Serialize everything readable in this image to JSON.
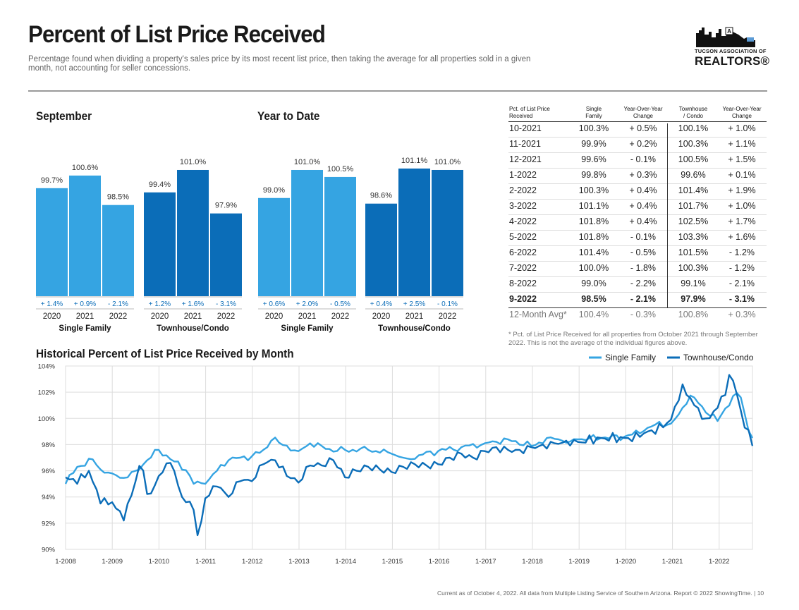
{
  "header": {
    "title": "Percent of List Price Received",
    "subtitle": "Percentage found when dividing a property's sales price by its most recent list price, then taking the average for all properties sold in a given month, not accounting for seller concessions.",
    "logo_line1": "TUCSON ASSOCIATION OF",
    "logo_line2": "REALTORS®"
  },
  "colors": {
    "single_family": "#35a4e2",
    "townhouse": "#0b6db8",
    "grid": "#dddddd",
    "text": "#1a1a1a",
    "change": "#0b6db8"
  },
  "bar_panels": {
    "september": {
      "title": "September",
      "groups": [
        {
          "label": "Single Family",
          "color": "single_family",
          "years": [
            "2020",
            "2021",
            "2022"
          ],
          "values": [
            99.7,
            100.6,
            98.5
          ],
          "value_labels": [
            "99.7%",
            "100.6%",
            "98.5%"
          ],
          "changes": [
            "+ 1.4%",
            "+ 0.9%",
            "- 2.1%"
          ]
        },
        {
          "label": "Townhouse/Condo",
          "color": "townhouse",
          "years": [
            "2020",
            "2021",
            "2022"
          ],
          "values": [
            99.4,
            101.0,
            97.9
          ],
          "value_labels": [
            "99.4%",
            "101.0%",
            "97.9%"
          ],
          "changes": [
            "+ 1.2%",
            "+ 1.6%",
            "- 3.1%"
          ]
        }
      ]
    },
    "ytd": {
      "title": "Year to Date",
      "groups": [
        {
          "label": "Single Family",
          "color": "single_family",
          "years": [
            "2020",
            "2021",
            "2022"
          ],
          "values": [
            99.0,
            101.0,
            100.5
          ],
          "value_labels": [
            "99.0%",
            "101.0%",
            "100.5%"
          ],
          "changes": [
            "+ 0.6%",
            "+ 2.0%",
            "- 0.5%"
          ]
        },
        {
          "label": "Townhouse/Condo",
          "color": "townhouse",
          "years": [
            "2020",
            "2021",
            "2022"
          ],
          "values": [
            98.6,
            101.1,
            101.0
          ],
          "value_labels": [
            "98.6%",
            "101.1%",
            "101.0%"
          ],
          "changes": [
            "+ 0.4%",
            "+ 2.5%",
            "- 0.1%"
          ]
        }
      ]
    }
  },
  "table": {
    "headers": [
      "Pct. of List Price\nReceived",
      "Single\nFamily",
      "Year-Over-Year\nChange",
      "Townhouse\n/ Condo",
      "Year-Over-Year\nChange"
    ],
    "rows": [
      [
        "10-2021",
        "100.3%",
        "+ 0.5%",
        "100.1%",
        "+ 1.0%"
      ],
      [
        "11-2021",
        "99.9%",
        "+ 0.2%",
        "100.3%",
        "+ 1.1%"
      ],
      [
        "12-2021",
        "99.6%",
        "- 0.1%",
        "100.5%",
        "+ 1.5%"
      ],
      [
        "1-2022",
        "99.8%",
        "+ 0.3%",
        "99.6%",
        "+ 0.1%"
      ],
      [
        "2-2022",
        "100.3%",
        "+ 0.4%",
        "101.4%",
        "+ 1.9%"
      ],
      [
        "3-2022",
        "101.1%",
        "+ 0.4%",
        "101.7%",
        "+ 1.0%"
      ],
      [
        "4-2022",
        "101.8%",
        "+ 0.4%",
        "102.5%",
        "+ 1.7%"
      ],
      [
        "5-2022",
        "101.8%",
        "- 0.1%",
        "103.3%",
        "+ 1.6%"
      ],
      [
        "6-2022",
        "101.4%",
        "- 0.5%",
        "101.5%",
        "- 1.2%"
      ],
      [
        "7-2022",
        "100.0%",
        "- 1.8%",
        "100.3%",
        "- 1.2%"
      ],
      [
        "8-2022",
        "99.0%",
        "- 2.2%",
        "99.1%",
        "- 2.1%"
      ],
      [
        "9-2022",
        "98.5%",
        "- 2.1%",
        "97.9%",
        "- 3.1%"
      ]
    ],
    "avg_row": [
      "12-Month Avg*",
      "100.4%",
      "- 0.3%",
      "100.8%",
      "+ 0.3%"
    ],
    "footnote": "* Pct. of List Price Received for all properties from October 2021 through September 2022. This is not the average of the individual figures above."
  },
  "chart_data": {
    "type": "line",
    "title": "Historical Percent of List Price Received by Month",
    "ylim": [
      90,
      104
    ],
    "yticks": [
      "90%",
      "92%",
      "94%",
      "96%",
      "98%",
      "100%",
      "102%",
      "104%"
    ],
    "ytick_values": [
      90,
      92,
      94,
      96,
      98,
      100,
      102,
      104
    ],
    "xticks": [
      "1-2008",
      "1-2009",
      "1-2010",
      "1-2011",
      "1-2012",
      "1-2013",
      "1-2014",
      "1-2015",
      "1-2016",
      "1-2017",
      "1-2018",
      "1-2019",
      "1-2020",
      "1-2021",
      "1-2022"
    ],
    "x_start": "1-2008",
    "grid": true,
    "legend_position": "top-right",
    "series": [
      {
        "name": "Single Family",
        "color": "single_family",
        "anchors": [
          [
            2008.0,
            95.0
          ],
          [
            2008.25,
            96.3
          ],
          [
            2008.6,
            96.9
          ],
          [
            2008.75,
            96.1
          ],
          [
            2009.0,
            95.8
          ],
          [
            2009.3,
            95.4
          ],
          [
            2009.5,
            96.0
          ],
          [
            2009.75,
            96.8
          ],
          [
            2010.0,
            97.6
          ],
          [
            2010.3,
            96.8
          ],
          [
            2010.6,
            96.0
          ],
          [
            2010.75,
            95.0
          ],
          [
            2011.0,
            95.0
          ],
          [
            2011.25,
            96.0
          ],
          [
            2011.5,
            96.8
          ],
          [
            2011.75,
            97.0
          ],
          [
            2012.0,
            97.1
          ],
          [
            2012.3,
            97.6
          ],
          [
            2012.45,
            98.5
          ],
          [
            2012.6,
            98.1
          ],
          [
            2013.0,
            97.5
          ],
          [
            2013.25,
            98.1
          ],
          [
            2013.5,
            97.9
          ],
          [
            2013.8,
            97.5
          ],
          [
            2014.0,
            97.6
          ],
          [
            2014.5,
            97.6
          ],
          [
            2015.0,
            97.3
          ],
          [
            2015.3,
            96.9
          ],
          [
            2015.6,
            97.2
          ],
          [
            2016.0,
            97.5
          ],
          [
            2016.5,
            97.8
          ],
          [
            2017.0,
            98.1
          ],
          [
            2017.5,
            98.4
          ],
          [
            2018.0,
            97.9
          ],
          [
            2018.45,
            98.6
          ],
          [
            2018.8,
            98.2
          ],
          [
            2019.0,
            98.4
          ],
          [
            2019.5,
            98.5
          ],
          [
            2020.0,
            98.6
          ],
          [
            2020.4,
            99.0
          ],
          [
            2020.7,
            99.6
          ],
          [
            2021.0,
            99.6
          ],
          [
            2021.15,
            100.2
          ],
          [
            2021.4,
            101.8
          ],
          [
            2021.7,
            100.8
          ],
          [
            2022.0,
            99.8
          ],
          [
            2022.35,
            101.8
          ],
          [
            2022.5,
            101.6
          ],
          [
            2022.67,
            99.0
          ],
          [
            2022.75,
            98.5
          ]
        ]
      },
      {
        "name": "Townhouse/Condo",
        "color": "townhouse",
        "anchors": [
          [
            2008.0,
            95.5
          ],
          [
            2008.25,
            95.0
          ],
          [
            2008.5,
            96.0
          ],
          [
            2008.75,
            93.5
          ],
          [
            2009.0,
            93.6
          ],
          [
            2009.25,
            92.2
          ],
          [
            2009.4,
            93.9
          ],
          [
            2009.6,
            96.6
          ],
          [
            2009.8,
            94.0
          ],
          [
            2010.0,
            95.6
          ],
          [
            2010.25,
            96.6
          ],
          [
            2010.5,
            94.0
          ],
          [
            2010.75,
            93.0
          ],
          [
            2010.85,
            90.7
          ],
          [
            2011.0,
            93.9
          ],
          [
            2011.25,
            94.8
          ],
          [
            2011.5,
            94.0
          ],
          [
            2011.75,
            95.2
          ],
          [
            2012.0,
            95.2
          ],
          [
            2012.25,
            96.5
          ],
          [
            2012.5,
            96.8
          ],
          [
            2012.75,
            95.6
          ],
          [
            2013.0,
            95.1
          ],
          [
            2013.25,
            96.4
          ],
          [
            2013.5,
            96.4
          ],
          [
            2013.75,
            96.8
          ],
          [
            2014.0,
            95.5
          ],
          [
            2014.25,
            96.0
          ],
          [
            2014.5,
            96.3
          ],
          [
            2014.75,
            96.1
          ],
          [
            2015.0,
            95.9
          ],
          [
            2015.25,
            96.3
          ],
          [
            2015.5,
            96.5
          ],
          [
            2015.75,
            96.4
          ],
          [
            2016.0,
            96.5
          ],
          [
            2016.25,
            97.0
          ],
          [
            2016.5,
            97.3
          ],
          [
            2016.75,
            97.0
          ],
          [
            2017.0,
            97.5
          ],
          [
            2017.25,
            97.8
          ],
          [
            2017.5,
            97.6
          ],
          [
            2017.75,
            97.6
          ],
          [
            2018.0,
            97.8
          ],
          [
            2018.25,
            98.0
          ],
          [
            2018.5,
            98.1
          ],
          [
            2018.75,
            98.3
          ],
          [
            2019.0,
            98.2
          ],
          [
            2019.5,
            98.5
          ],
          [
            2020.0,
            98.5
          ],
          [
            2020.3,
            98.5
          ],
          [
            2020.5,
            99.0
          ],
          [
            2020.8,
            99.2
          ],
          [
            2021.0,
            99.9
          ],
          [
            2021.25,
            102.6
          ],
          [
            2021.5,
            101.0
          ],
          [
            2021.75,
            100.0
          ],
          [
            2022.0,
            100.8
          ],
          [
            2022.3,
            103.3
          ],
          [
            2022.45,
            101.4
          ],
          [
            2022.58,
            99.3
          ],
          [
            2022.67,
            99.1
          ],
          [
            2022.75,
            97.9
          ]
        ]
      }
    ]
  },
  "footer": "Current as of October 4, 2022. All data from Multiple Listing Service of Southern Arizona. Report © 2022 ShowingTime.  |  10"
}
